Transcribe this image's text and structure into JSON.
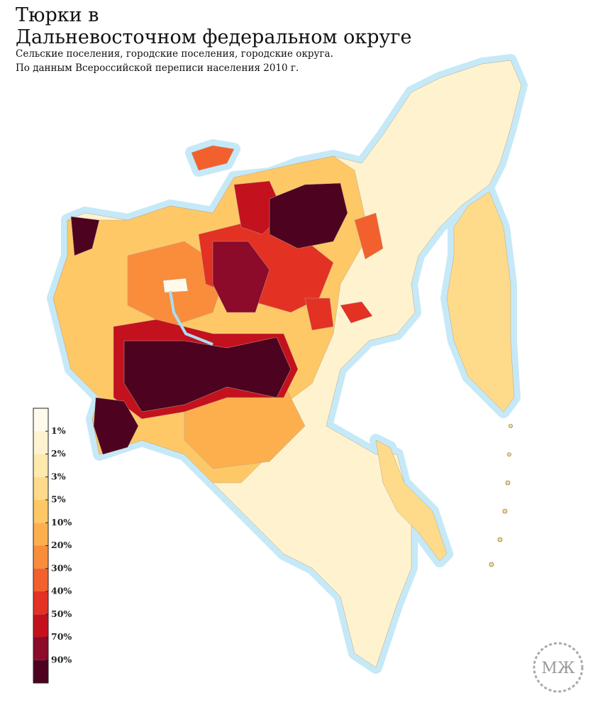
{
  "header": {
    "title_line1": "Тюрки в",
    "title_line2": "Дальневосточном федеральном округе",
    "subtitle_line1": "Сельские поселения, городские поселения, городские округа.",
    "subtitle_line2": "По данным Всероссийской переписи населения 2010 г."
  },
  "legend": {
    "colors": [
      "#fffaeb",
      "#fff3cf",
      "#ffe9ad",
      "#fedb8a",
      "#fec866",
      "#fdaf4e",
      "#f98d3c",
      "#f2602e",
      "#e33124",
      "#c4111e",
      "#8c0a2a",
      "#4d0320"
    ],
    "labels": [
      "1%",
      "2%",
      "3%",
      "5%",
      "10%",
      "20%",
      "30%",
      "40%",
      "50%",
      "70%",
      "90%"
    ]
  },
  "logo": {
    "text": "МЖ"
  }
}
